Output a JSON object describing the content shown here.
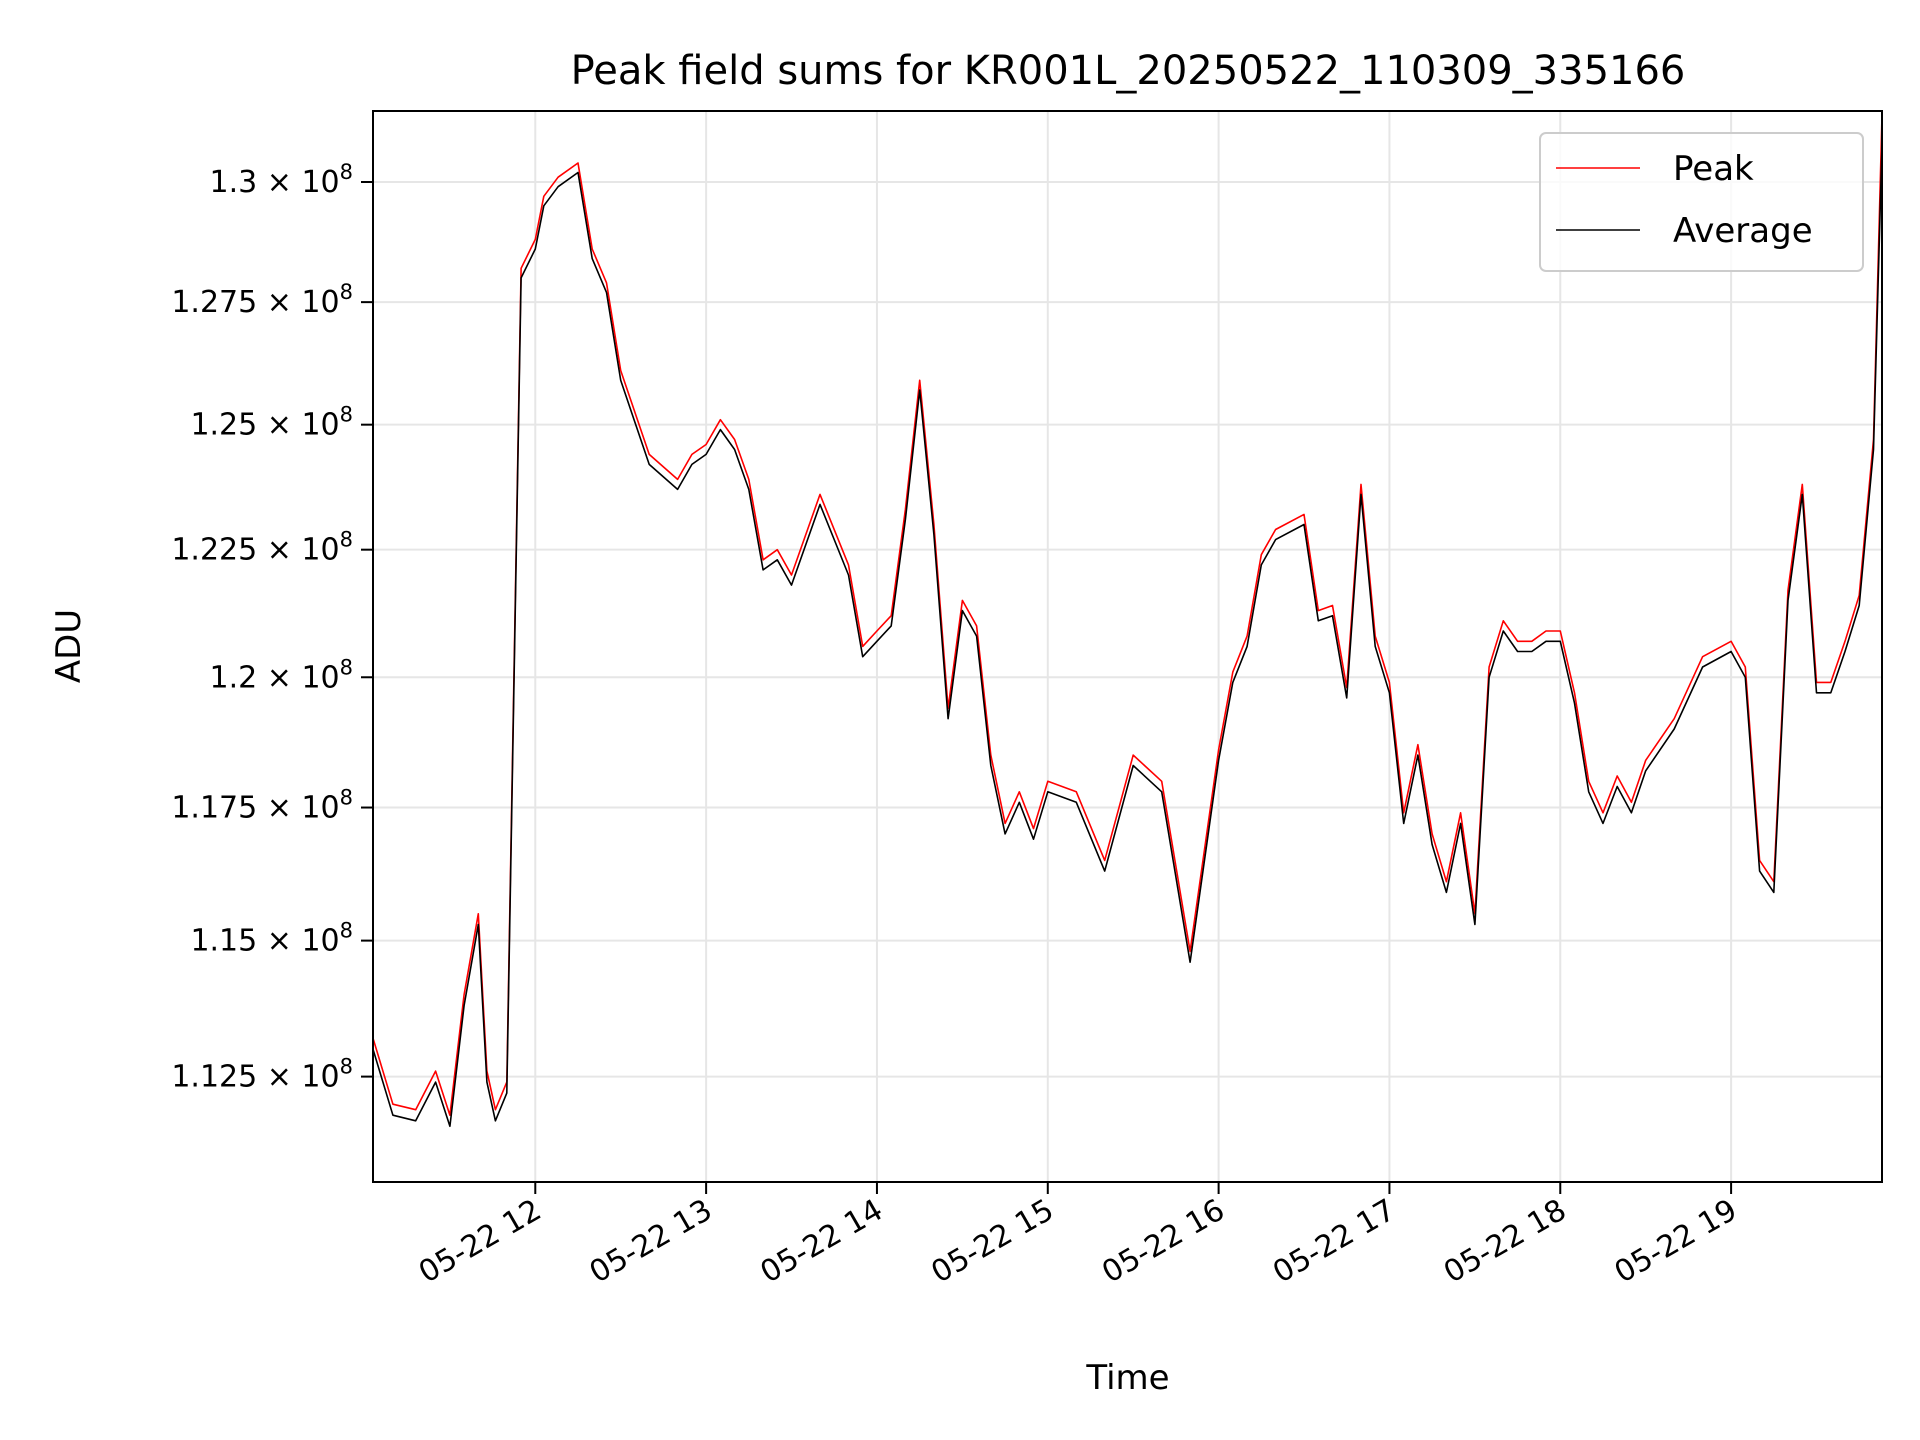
{
  "chart_data": {
    "type": "line",
    "title": "Peak field sums for KR001L_20250522_110309_335166",
    "xlabel": "Time",
    "ylabel": "ADU",
    "y_scale": "log",
    "xlim": [
      "2025-05-22 11:03",
      "2025-05-22 19:53"
    ],
    "ylim": [
      110600000,
      131500000
    ],
    "x_ticks": [
      "05-22 12",
      "05-22 13",
      "05-22 14",
      "05-22 15",
      "05-22 16",
      "05-22 17",
      "05-22 18",
      "05-22 19"
    ],
    "y_ticks": [
      {
        "value": 112500000,
        "mantissa": "1.125",
        "exp": "8"
      },
      {
        "value": 115000000,
        "mantissa": "1.15",
        "exp": "8"
      },
      {
        "value": 117500000,
        "mantissa": "1.175",
        "exp": "8"
      },
      {
        "value": 120000000,
        "mantissa": "1.2",
        "exp": "8"
      },
      {
        "value": 122500000,
        "mantissa": "1.225",
        "exp": "8"
      },
      {
        "value": 125000000,
        "mantissa": "1.25",
        "exp": "8"
      },
      {
        "value": 127500000,
        "mantissa": "1.275",
        "exp": "8"
      },
      {
        "value": 130000000,
        "mantissa": "1.3",
        "exp": "8"
      }
    ],
    "grid": true,
    "legend_position": "top-right",
    "series": [
      {
        "name": "Peak",
        "color": "#ff0000"
      },
      {
        "name": "Average",
        "color": "#000000"
      }
    ],
    "x": [
      "11:03",
      "11:10",
      "11:18",
      "11:25",
      "11:30",
      "11:35",
      "11:40",
      "11:43",
      "11:46",
      "11:50",
      "11:55",
      "12:00",
      "12:03",
      "12:08",
      "12:15",
      "12:20",
      "12:25",
      "12:30",
      "12:40",
      "12:50",
      "12:55",
      "13:00",
      "13:05",
      "13:10",
      "13:15",
      "13:20",
      "13:25",
      "13:30",
      "13:40",
      "13:50",
      "13:55",
      "14:00",
      "14:05",
      "14:10",
      "14:15",
      "14:20",
      "14:25",
      "14:30",
      "14:35",
      "14:40",
      "14:45",
      "14:50",
      "14:55",
      "15:00",
      "15:10",
      "15:20",
      "15:30",
      "15:40",
      "15:50",
      "16:00",
      "16:05",
      "16:10",
      "16:15",
      "16:20",
      "16:30",
      "16:35",
      "16:40",
      "16:45",
      "16:50",
      "16:55",
      "17:00",
      "17:05",
      "17:10",
      "17:15",
      "17:20",
      "17:25",
      "17:30",
      "17:35",
      "17:40",
      "17:45",
      "17:50",
      "17:55",
      "18:00",
      "18:05",
      "18:10",
      "18:15",
      "18:20",
      "18:25",
      "18:30",
      "18:40",
      "18:50",
      "19:00",
      "19:05",
      "19:10",
      "19:15",
      "19:20",
      "19:25",
      "19:30",
      "19:35",
      "19:40",
      "19:45",
      "19:50",
      "19:53"
    ],
    "average": [
      113000000,
      111800000,
      111700000,
      112400000,
      111600000,
      113800000,
      115300000,
      112400000,
      111700000,
      112200000,
      128000000,
      128600000,
      129500000,
      129900000,
      130200000,
      128400000,
      127700000,
      125900000,
      124200000,
      123700000,
      124200000,
      124400000,
      124900000,
      124500000,
      123700000,
      122100000,
      122300000,
      121800000,
      123400000,
      122000000,
      120400000,
      120700000,
      121000000,
      123100000,
      125700000,
      122800000,
      119200000,
      121300000,
      120800000,
      118300000,
      117000000,
      117600000,
      116900000,
      117800000,
      117600000,
      116300000,
      118300000,
      117800000,
      114600000,
      118400000,
      119900000,
      120600000,
      122200000,
      122700000,
      123000000,
      121100000,
      121200000,
      119600000,
      123600000,
      120600000,
      119700000,
      117200000,
      118500000,
      116800000,
      115900000,
      117200000,
      115300000,
      120000000,
      120900000,
      120500000,
      120500000,
      120700000,
      120700000,
      119500000,
      117800000,
      117200000,
      117900000,
      117400000,
      118200000,
      119000000,
      120200000,
      120500000,
      120000000,
      116300000,
      115900000,
      121500000,
      123600000,
      119700000,
      119700000,
      120500000,
      121400000,
      124500000,
      130800000
    ],
    "peak": [
      113200000,
      112000000,
      111900000,
      112600000,
      111800000,
      114000000,
      115500000,
      112600000,
      111900000,
      112400000,
      128200000,
      128800000,
      129700000,
      130100000,
      130400000,
      128600000,
      127900000,
      126100000,
      124400000,
      123900000,
      124400000,
      124600000,
      125100000,
      124700000,
      123900000,
      122300000,
      122500000,
      122000000,
      123600000,
      122200000,
      120600000,
      120900000,
      121200000,
      123300000,
      125900000,
      123000000,
      119400000,
      121500000,
      121000000,
      118500000,
      117200000,
      117800000,
      117100000,
      118000000,
      117800000,
      116500000,
      118500000,
      118000000,
      114800000,
      118600000,
      120100000,
      120800000,
      122400000,
      122900000,
      123200000,
      121300000,
      121400000,
      119800000,
      123800000,
      120800000,
      119900000,
      117400000,
      118700000,
      117000000,
      116100000,
      117400000,
      115500000,
      120200000,
      121100000,
      120700000,
      120700000,
      120900000,
      120900000,
      119700000,
      118000000,
      117400000,
      118100000,
      117600000,
      118400000,
      119200000,
      120400000,
      120700000,
      120200000,
      116500000,
      116100000,
      121700000,
      123800000,
      119900000,
      119900000,
      120700000,
      121600000,
      124700000,
      131400000
    ]
  }
}
